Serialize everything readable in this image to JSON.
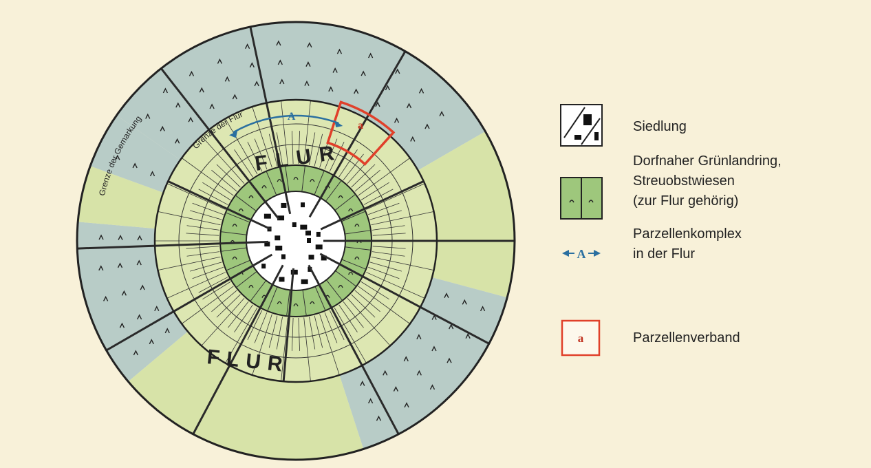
{
  "map": {
    "boundary_labels": [
      "Grenze der Gemarkung",
      "Grenze der Flur"
    ],
    "field_labels": [
      "FLUR",
      "FLUR"
    ],
    "complex_label": "A",
    "parcel_label": "a"
  },
  "legend": [
    {
      "lines": [
        "Siedlung"
      ]
    },
    {
      "lines": [
        "Dorfnaher Grünlandring,",
        "Streuobstwiesen",
        "(zur Flur gehörig)"
      ]
    },
    {
      "symbol": "A",
      "lines": [
        "Parzellenkomplex",
        "in der Flur"
      ]
    },
    {
      "symbol": "a",
      "lines": [
        "Parzellenverband"
      ]
    }
  ]
}
